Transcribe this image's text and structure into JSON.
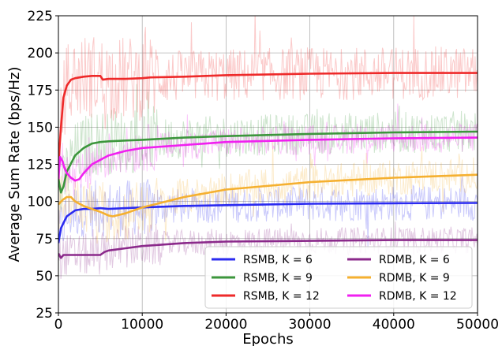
{
  "chart_data": {
    "type": "line",
    "xlabel": "Epochs",
    "ylabel": "Average Sum Rate (bps/Hz)",
    "xlim": [
      0,
      50000
    ],
    "ylim": [
      25,
      225
    ],
    "xticks": [
      0,
      10000,
      20000,
      30000,
      40000,
      50000
    ],
    "xtick_labels": [
      "0",
      "10000",
      "20000",
      "30000",
      "40000",
      "50000"
    ],
    "yticks": [
      25,
      50,
      75,
      100,
      125,
      150,
      175,
      200,
      225
    ],
    "ytick_labels": [
      "25",
      "50",
      "75",
      "100",
      "125",
      "150",
      "175",
      "200",
      "225"
    ],
    "grid": true,
    "legend_position": "bottom-right",
    "legend_columns": 2,
    "series": [
      {
        "name": "RSMB, K = 6",
        "color": "#2b2bf0",
        "noise_amp": 12,
        "x": [
          0,
          300,
          1000,
          2000,
          3000,
          4000,
          5000,
          6000,
          8000,
          10000,
          15000,
          20000,
          30000,
          40000,
          50000
        ],
        "values": [
          72,
          82,
          90,
          94,
          95,
          95,
          95.5,
          95,
          95.5,
          96,
          97,
          97.5,
          98.5,
          98.8,
          99
        ]
      },
      {
        "name": "RSMB, K = 9",
        "color": "#3c963c",
        "noise_amp": 14,
        "x": [
          0,
          300,
          600,
          1000,
          2000,
          3000,
          4000,
          5000,
          6000,
          8000,
          10000,
          15000,
          20000,
          30000,
          40000,
          50000
        ],
        "values": [
          115,
          106,
          110,
          120,
          131,
          136,
          139,
          140,
          140.5,
          141,
          141.5,
          143,
          144,
          145.5,
          146.5,
          147
        ]
      },
      {
        "name": "RSMB, K = 12",
        "color": "#ee2a2a",
        "noise_amp": 18,
        "x": [
          0,
          300,
          600,
          1000,
          1500,
          2000,
          3000,
          4000,
          5000,
          5300,
          6000,
          8000,
          10000,
          11000,
          15000,
          20000,
          30000,
          40000,
          50000
        ],
        "values": [
          125,
          150,
          170,
          178,
          182,
          183,
          184,
          184.5,
          184.5,
          182,
          182.5,
          182.5,
          183,
          183.5,
          184,
          185,
          186,
          186.5,
          186.5
        ]
      },
      {
        "name": "RDMB, K = 6",
        "color": "#8b2a8b",
        "noise_amp": 9,
        "x": [
          0,
          300,
          600,
          1000,
          2000,
          3000,
          4000,
          5000,
          5500,
          6000,
          8000,
          10000,
          15000,
          20000,
          30000,
          40000,
          50000
        ],
        "values": [
          65,
          62,
          64,
          64,
          64,
          64,
          64,
          64,
          66,
          67,
          68.5,
          70,
          72,
          73,
          73.5,
          74,
          74
        ]
      },
      {
        "name": "RDMB, K = 9",
        "color": "#f5b030",
        "noise_amp": 12,
        "x": [
          0,
          500,
          1000,
          1500,
          2000,
          3000,
          4000,
          5000,
          6000,
          6500,
          8000,
          10000,
          15000,
          20000,
          30000,
          40000,
          50000
        ],
        "values": [
          98,
          101,
          103,
          103,
          100,
          97,
          95,
          93,
          90.5,
          90,
          92,
          96,
          103,
          108,
          113,
          116,
          118
        ]
      },
      {
        "name": "RDMB, K = 12",
        "color": "#f020f0",
        "noise_amp": 10,
        "x": [
          0,
          200,
          500,
          700,
          1000,
          1500,
          2000,
          2500,
          3000,
          4000,
          5000,
          6000,
          8000,
          10000,
          15000,
          20000,
          30000,
          40000,
          50000
        ],
        "values": [
          115,
          130,
          127,
          123,
          119,
          116,
          114,
          115,
          119,
          125,
          128,
          131,
          134,
          136,
          138,
          140,
          141.5,
          142.5,
          143
        ]
      }
    ]
  }
}
